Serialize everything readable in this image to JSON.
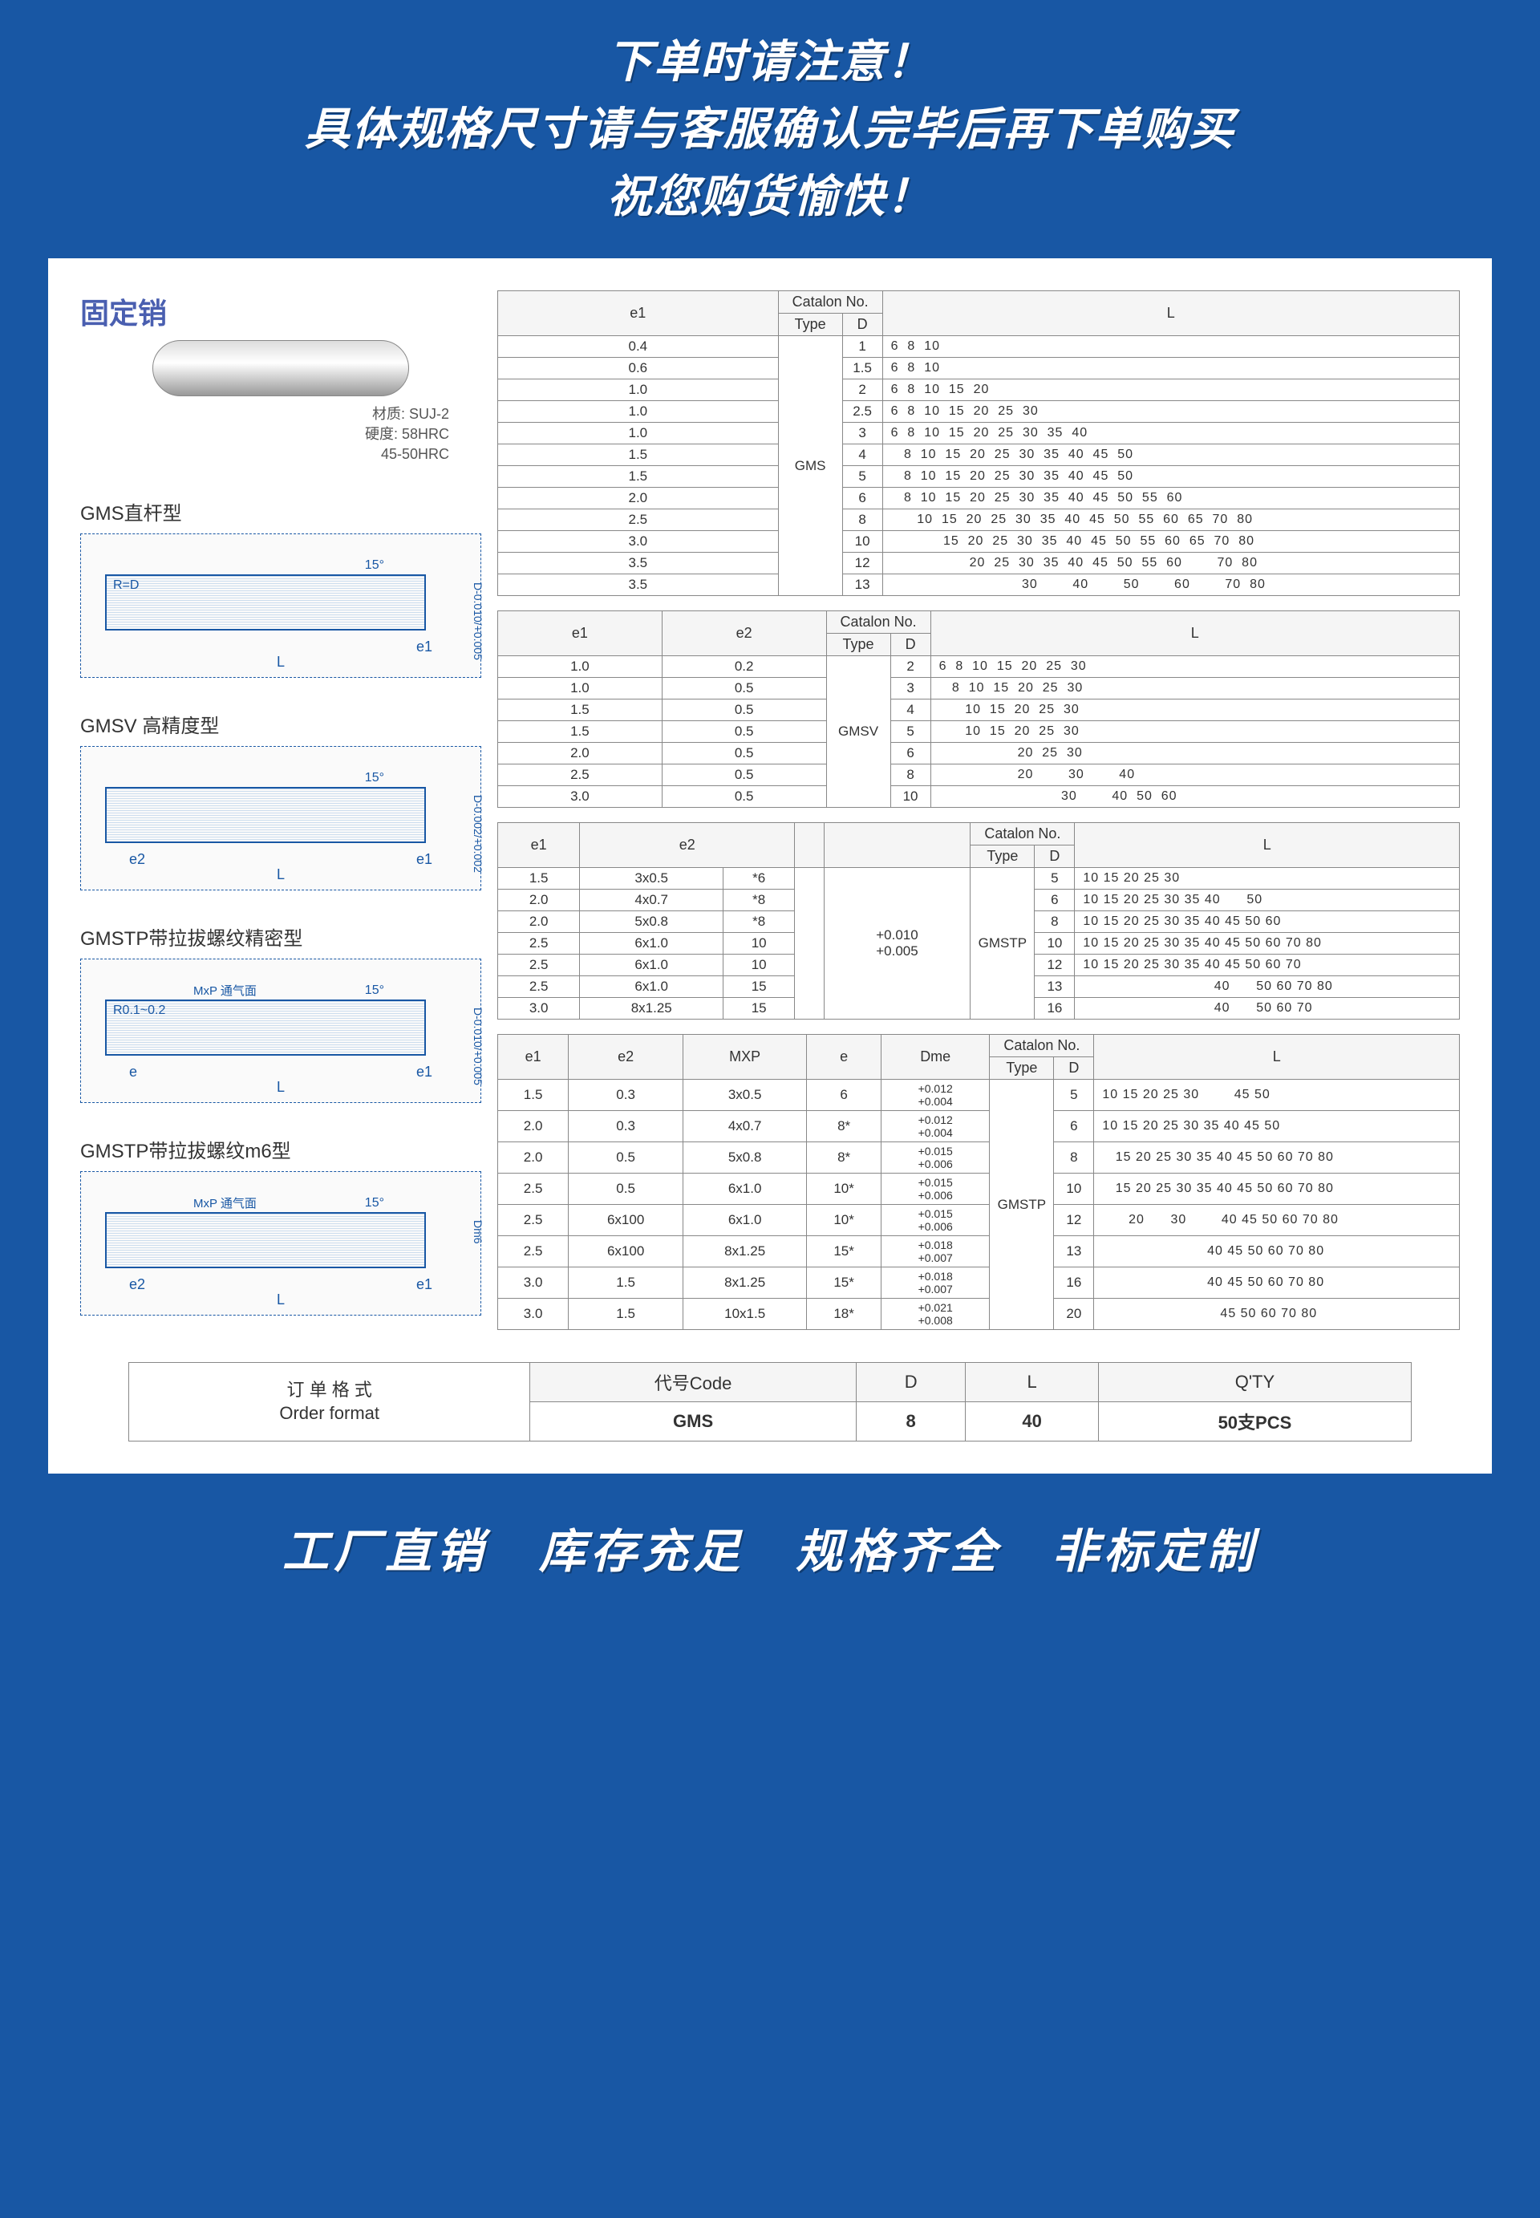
{
  "banner": {
    "line1": "下单时请注意！",
    "line2": "具体规格尺寸请与客服确认完毕后再下单购买",
    "line3": "祝您购货愉快！"
  },
  "footer": "工厂直销　库存充足　规格齐全　非标定制",
  "product_title": "固定销",
  "material": {
    "l1": "材质: SUJ-2",
    "l2": "硬度: 58HRC",
    "l3": "45-50HRC"
  },
  "diagrams": [
    {
      "title": "GMS直杆型",
      "labels": {
        "L": "L",
        "e1": "e1",
        "D": "D-0.010/+0.005",
        "R": "R=D",
        "ang": "15°"
      }
    },
    {
      "title": "GMSV 高精度型",
      "labels": {
        "L": "L",
        "e1": "e1",
        "e2": "e2",
        "D": "D-0.002/+0.002",
        "ang": "15°"
      }
    },
    {
      "title": "GMSTP带拉拔螺纹精密型",
      "labels": {
        "L": "L",
        "e1": "e1",
        "e": "e",
        "D": "D-0.010/+0.005",
        "ang": "15°",
        "R": "R0.1~0.2",
        "mxp": "MxP  通气面"
      }
    },
    {
      "title": "GMSTP带拉拔螺纹m6型",
      "labels": {
        "L": "L",
        "e1": "e1",
        "e2": "e2",
        "D": "Dm6",
        "ang": "15°",
        "mxp": "MxP  通气面"
      }
    }
  ],
  "table1": {
    "headers": {
      "e1": "e1",
      "catalon": "Catalon No.",
      "type": "Type",
      "D": "D",
      "L": "L"
    },
    "type": "GMS",
    "rows": [
      {
        "e1": "0.4",
        "D": "1",
        "L": "6  8  10"
      },
      {
        "e1": "0.6",
        "D": "1.5",
        "L": "6  8  10"
      },
      {
        "e1": "1.0",
        "D": "2",
        "L": "6  8  10  15  20"
      },
      {
        "e1": "1.0",
        "D": "2.5",
        "L": "6  8  10  15  20  25  30"
      },
      {
        "e1": "1.0",
        "D": "3",
        "L": "6  8  10  15  20  25  30  35  40"
      },
      {
        "e1": "1.5",
        "D": "4",
        "L": "   8  10  15  20  25  30  35  40  45  50"
      },
      {
        "e1": "1.5",
        "D": "5",
        "L": "   8  10  15  20  25  30  35  40  45  50"
      },
      {
        "e1": "2.0",
        "D": "6",
        "L": "   8  10  15  20  25  30  35  40  45  50  55  60"
      },
      {
        "e1": "2.5",
        "D": "8",
        "L": "      10  15  20  25  30  35  40  45  50  55  60  65  70  80"
      },
      {
        "e1": "3.0",
        "D": "10",
        "L": "            15  20  25  30  35  40  45  50  55  60  65  70  80"
      },
      {
        "e1": "3.5",
        "D": "12",
        "L": "                  20  25  30  35  40  45  50  55  60        70  80"
      },
      {
        "e1": "3.5",
        "D": "13",
        "L": "                              30        40        50        60        70  80"
      }
    ]
  },
  "table2": {
    "headers": {
      "e1": "e1",
      "e2": "e2",
      "catalon": "Catalon No.",
      "type": "Type",
      "D": "D",
      "L": "L"
    },
    "type": "GMSV",
    "rows": [
      {
        "e1": "1.0",
        "e2": "0.2",
        "D": "2",
        "L": "6  8  10  15  20  25  30"
      },
      {
        "e1": "1.0",
        "e2": "0.5",
        "D": "3",
        "L": "   8  10  15  20  25  30"
      },
      {
        "e1": "1.5",
        "e2": "0.5",
        "D": "4",
        "L": "      10  15  20  25  30"
      },
      {
        "e1": "1.5",
        "e2": "0.5",
        "D": "5",
        "L": "      10  15  20  25  30"
      },
      {
        "e1": "2.0",
        "e2": "0.5",
        "D": "6",
        "L": "                  20  25  30"
      },
      {
        "e1": "2.5",
        "e2": "0.5",
        "D": "8",
        "L": "                  20        30        40"
      },
      {
        "e1": "3.0",
        "e2": "0.5",
        "D": "10",
        "L": "                            30        40  50  60"
      }
    ]
  },
  "table3": {
    "headers": {
      "e1": "e1",
      "e2": "e2",
      "blank": "",
      "tol": "",
      "catalon": "Catalon No.",
      "type": "Type",
      "D": "D",
      "L": "L"
    },
    "type": "GMSTP",
    "tol": "+0.010\n+0.005",
    "rows": [
      {
        "e1": "1.5",
        "e2a": "3x0.5",
        "e2b": "*6",
        "D": "5",
        "L": "10 15 20 25 30"
      },
      {
        "e1": "2.0",
        "e2a": "4x0.7",
        "e2b": "*8",
        "D": "6",
        "L": "10 15 20 25 30 35 40      50"
      },
      {
        "e1": "2.0",
        "e2a": "5x0.8",
        "e2b": "*8",
        "D": "8",
        "L": "10 15 20 25 30 35 40 45 50 60"
      },
      {
        "e1": "2.5",
        "e2a": "6x1.0",
        "e2b": "10",
        "D": "10",
        "L": "10 15 20 25 30 35 40 45 50 60 70 80"
      },
      {
        "e1": "2.5",
        "e2a": "6x1.0",
        "e2b": "10",
        "D": "12",
        "L": "10 15 20 25 30 35 40 45 50 60 70"
      },
      {
        "e1": "2.5",
        "e2a": "6x1.0",
        "e2b": "15",
        "D": "13",
        "L": "                              40      50 60 70 80"
      },
      {
        "e1": "3.0",
        "e2a": "8x1.25",
        "e2b": "15",
        "D": "16",
        "L": "                              40      50 60 70"
      }
    ]
  },
  "table4": {
    "headers": {
      "e1": "e1",
      "e2": "e2",
      "mxp": "MXP",
      "e": "e",
      "dme": "Dme",
      "catalon": "Catalon No.",
      "type": "Type",
      "D": "D",
      "L": "L"
    },
    "type": "GMSTP",
    "rows": [
      {
        "e1": "1.5",
        "e2": "0.3",
        "mxp": "3x0.5",
        "e": "6",
        "dme": "+0.012\n+0.004",
        "D": "5",
        "L": "10 15 20 25 30        45 50"
      },
      {
        "e1": "2.0",
        "e2": "0.3",
        "mxp": "4x0.7",
        "e": "8*",
        "dme": "+0.012\n+0.004",
        "D": "6",
        "L": "10 15 20 25 30 35 40 45 50"
      },
      {
        "e1": "2.0",
        "e2": "0.5",
        "mxp": "5x0.8",
        "e": "8*",
        "dme": "+0.015\n+0.006",
        "D": "8",
        "L": "   15 20 25 30 35 40 45 50 60 70 80"
      },
      {
        "e1": "2.5",
        "e2": "0.5",
        "mxp": "6x1.0",
        "e": "10*",
        "dme": "+0.015\n+0.006",
        "D": "10",
        "L": "   15 20 25 30 35 40 45 50 60 70 80"
      },
      {
        "e1": "2.5",
        "e2": "6x100",
        "mxp": "6x1.0",
        "e": "10*",
        "dme": "+0.015\n+0.006",
        "D": "12",
        "L": "      20      30        40 45 50 60 70 80"
      },
      {
        "e1": "2.5",
        "e2": "6x100",
        "mxp": "8x1.25",
        "e": "15*",
        "dme": "+0.018\n+0.007",
        "D": "13",
        "L": "                        40 45 50 60 70 80"
      },
      {
        "e1": "3.0",
        "e2": "1.5",
        "mxp": "8x1.25",
        "e": "15*",
        "dme": "+0.018\n+0.007",
        "D": "16",
        "L": "                        40 45 50 60 70 80"
      },
      {
        "e1": "3.0",
        "e2": "1.5",
        "mxp": "10x1.5",
        "e": "18*",
        "dme": "+0.021\n+0.008",
        "D": "20",
        "L": "                           45 50 60 70 80"
      }
    ]
  },
  "order": {
    "title_cn": "订 单 格 式",
    "title_en": "Order format",
    "cols": [
      "代号Code",
      "D",
      "L",
      "Q'TY"
    ],
    "vals": [
      "GMS",
      "8",
      "40",
      "50支PCS"
    ]
  },
  "colors": {
    "bg": "#1857a4",
    "white": "#ffffff",
    "border": "#888888",
    "title": "#4a5fb0"
  }
}
